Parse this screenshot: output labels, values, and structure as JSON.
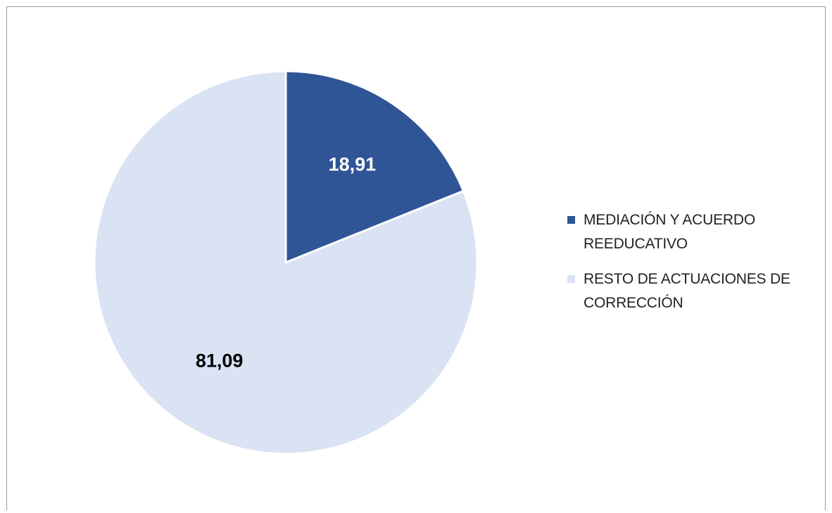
{
  "chart_data": {
    "type": "pie",
    "title": "",
    "categories": [
      "MEDIACIÓN Y ACUERDO REEDUCATIVO",
      "RESTO DE ACTUACIONES DE CORRECCIÓN"
    ],
    "values": [
      18.91,
      81.09
    ],
    "value_labels": [
      "18,91",
      "81,09"
    ],
    "colors": [
      "#2f5597",
      "#dae3f3"
    ],
    "label_colors": [
      "#ffffff",
      "#000000"
    ],
    "legend_position": "right",
    "start_angle_deg": 0,
    "direction": "clockwise"
  }
}
